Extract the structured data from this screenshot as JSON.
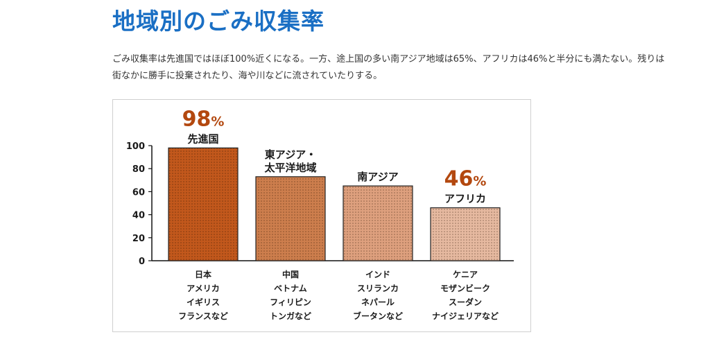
{
  "page": {
    "title": "地域別のごみ収集率",
    "description": "ごみ収集率は先進国ではほぼ100%近くになる。一方、途上国の多い南アジア地域は65%、アフリカは46%と半分にも満たない。残りは街なかに勝手に投棄されたり、海や川などに流されていたりする。"
  },
  "colors": {
    "title": "#1a6fc4",
    "highlight": "#b3480f"
  },
  "chart_data": {
    "type": "bar",
    "categories": [
      "先進国",
      "東アジア・太平洋地域",
      "南アジア",
      "アフリカ"
    ],
    "category_label_lines": [
      [
        "先進国"
      ],
      [
        "東アジア・",
        "太平洋地域"
      ],
      [
        "南アジア"
      ],
      [
        "アフリカ"
      ]
    ],
    "values": [
      98,
      73,
      65,
      46
    ],
    "highlight_labels": [
      "98%",
      "",
      "",
      "46%"
    ],
    "country_examples": [
      [
        "日本",
        "アメリカ",
        "イギリス",
        "フランスなど"
      ],
      [
        "中国",
        "ベトナム",
        "フィリピン",
        "トンガなど"
      ],
      [
        "インド",
        "スリランカ",
        "ネパール",
        "ブータンなど"
      ],
      [
        "ケニア",
        "モザンビーク",
        "スーダン",
        "ナイジェリアなど"
      ]
    ],
    "bar_colors": [
      "#c2581c",
      "#cd7e4d",
      "#dea07e",
      "#e6b9a0"
    ],
    "yticks": [
      0,
      20,
      40,
      60,
      80,
      100
    ],
    "ylim": [
      0,
      100
    ],
    "title": "",
    "xlabel": "",
    "ylabel": "",
    "grid": false
  }
}
